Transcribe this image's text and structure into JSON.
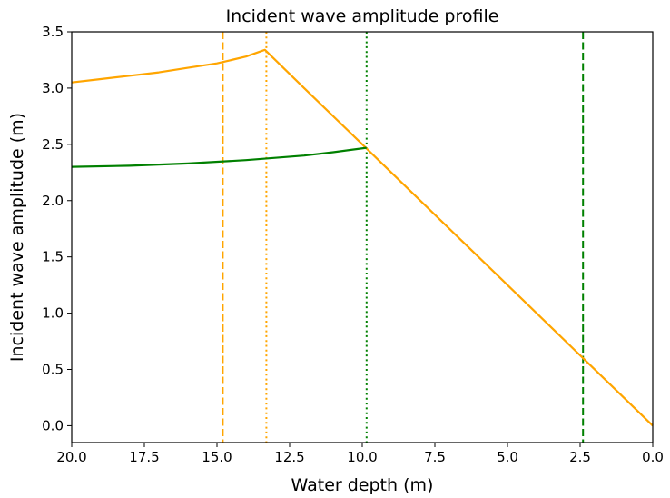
{
  "chart_data": {
    "type": "line",
    "title": "Incident wave amplitude profile",
    "xlabel": "Water depth (m)",
    "ylabel": "Incident wave amplitude (m)",
    "xlim": [
      20.0,
      0.0
    ],
    "ylim": [
      -0.15,
      3.5
    ],
    "x_inverted": true,
    "grid": false,
    "legend": "none",
    "xticks": [
      "20.0",
      "17.5",
      "15.0",
      "12.5",
      "10.0",
      "7.5",
      "5.0",
      "2.5",
      "0.0"
    ],
    "yticks": [
      "0.0",
      "0.5",
      "1.0",
      "1.5",
      "2.0",
      "2.5",
      "3.0",
      "3.5"
    ],
    "xtick_values": [
      20.0,
      17.5,
      15.0,
      12.5,
      10.0,
      7.5,
      5.0,
      2.5,
      0.0
    ],
    "ytick_values": [
      0.0,
      0.5,
      1.0,
      1.5,
      2.0,
      2.5,
      3.0,
      3.5
    ],
    "series": [
      {
        "color": "#ffa500",
        "style": "solid",
        "x": [
          20.0,
          19.0,
          18.0,
          17.0,
          16.0,
          15.0,
          14.0,
          13.35,
          12.0,
          10.0,
          8.0,
          6.0,
          4.0,
          2.4,
          0.0
        ],
        "y": [
          3.05,
          3.08,
          3.11,
          3.14,
          3.18,
          3.22,
          3.28,
          3.34,
          3.0,
          2.5,
          2.0,
          1.5,
          1.0,
          0.6,
          0.0
        ]
      },
      {
        "color": "#008000",
        "style": "solid",
        "x": [
          20.0,
          18.0,
          16.0,
          14.0,
          12.0,
          11.0,
          9.85
        ],
        "y": [
          2.3,
          2.31,
          2.33,
          2.36,
          2.4,
          2.43,
          2.47
        ]
      }
    ],
    "vlines": [
      {
        "x": 14.8,
        "color": "#ffa500",
        "style": "dashed"
      },
      {
        "x": 13.3,
        "color": "#ffa500",
        "style": "dotted"
      },
      {
        "x": 9.85,
        "color": "#008000",
        "style": "dotted"
      },
      {
        "x": 2.4,
        "color": "#008000",
        "style": "dashed"
      }
    ]
  }
}
